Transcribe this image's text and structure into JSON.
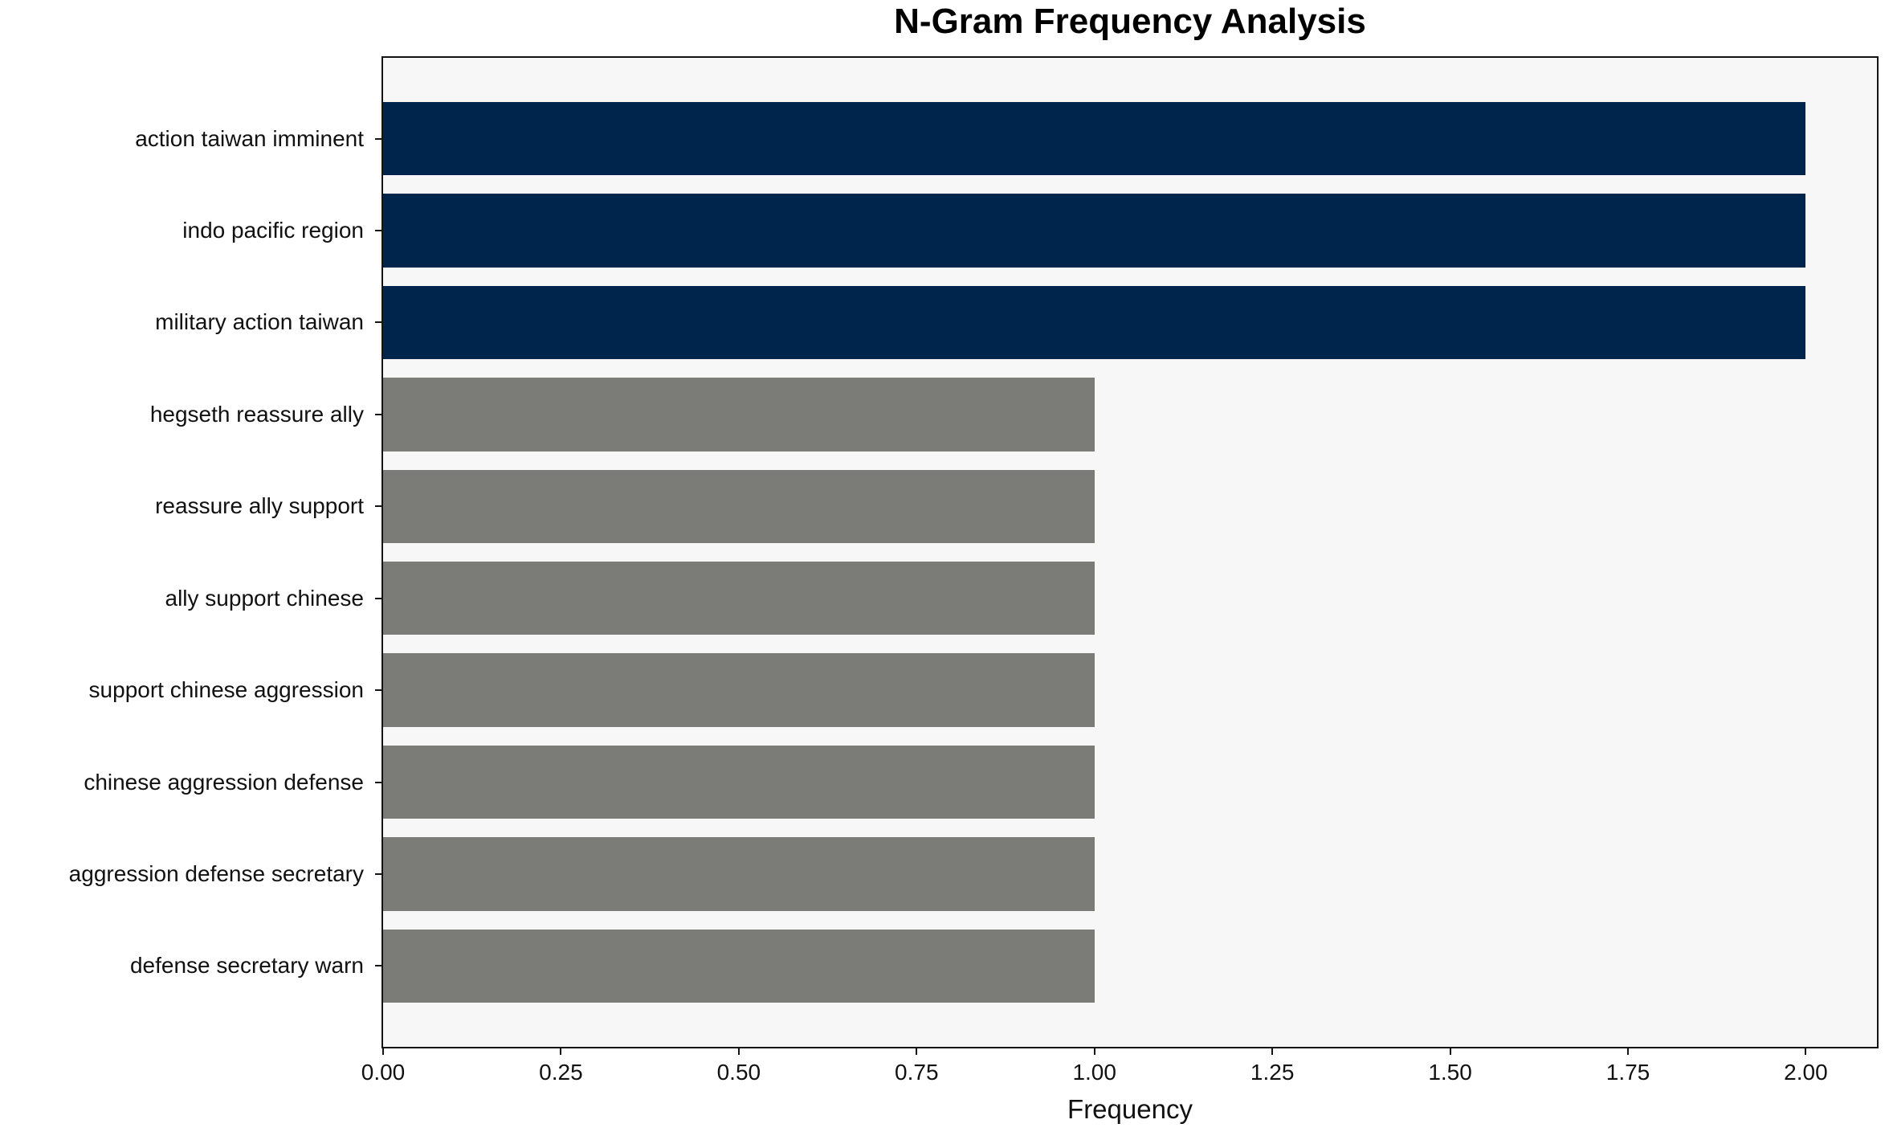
{
  "chart_data": {
    "type": "bar",
    "orientation": "horizontal",
    "title": "N-Gram Frequency Analysis",
    "xlabel": "Frequency",
    "ylabel": "",
    "categories": [
      "action taiwan imminent",
      "indo pacific region",
      "military action taiwan",
      "hegseth reassure ally",
      "reassure ally support",
      "ally support chinese",
      "support chinese aggression",
      "chinese aggression defense",
      "aggression defense secretary",
      "defense secretary warn"
    ],
    "values": [
      2,
      2,
      2,
      1,
      1,
      1,
      1,
      1,
      1,
      1
    ],
    "bar_colors": [
      "#00254d",
      "#00254d",
      "#00254d",
      "#7b7b78",
      "#7b7b78",
      "#7b7b78",
      "#7b7b78",
      "#7b7b78",
      "#7b7b78",
      "#7b7b78"
    ],
    "highlight_color": "#00254d",
    "default_color": "#7b7b78",
    "plot_background": "#f7f7f7",
    "frame_color": "#141414",
    "xlim": [
      0,
      2.1
    ],
    "x_tick_values": [
      0,
      0.25,
      0.5,
      0.75,
      1.0,
      1.25,
      1.5,
      1.75,
      2.0
    ],
    "x_tick_labels": [
      "0.00",
      "0.25",
      "0.50",
      "0.75",
      "1.00",
      "1.25",
      "1.50",
      "1.75",
      "2.00"
    ],
    "grid": false,
    "legend": false
  }
}
